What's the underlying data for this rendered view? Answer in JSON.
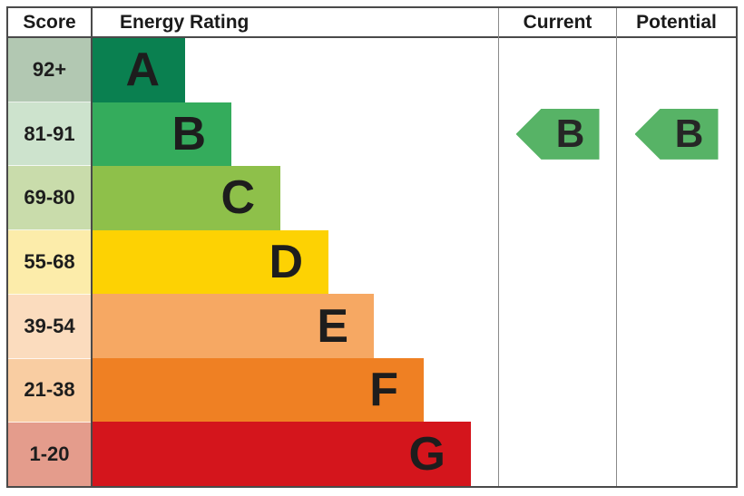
{
  "chart_data": {
    "type": "bar",
    "title": "Energy Rating",
    "columns": {
      "score": "Score",
      "rating": "Energy Rating",
      "current": "Current",
      "potential": "Potential"
    },
    "bands": [
      {
        "letter": "A",
        "score": "92+",
        "bar_color": "#0a8050",
        "score_color": "#b2c8b2",
        "bar_length": 102
      },
      {
        "letter": "B",
        "score": "81-91",
        "bar_color": "#34ac5c",
        "score_color": "#cde3cd",
        "bar_length": 153
      },
      {
        "letter": "C",
        "score": "69-80",
        "bar_color": "#8ec04a",
        "score_color": "#c9dcab",
        "bar_length": 207
      },
      {
        "letter": "D",
        "score": "55-68",
        "bar_color": "#fdd203",
        "score_color": "#fcecaa",
        "bar_length": 260
      },
      {
        "letter": "E",
        "score": "39-54",
        "bar_color": "#f6a863",
        "score_color": "#fbdcbe",
        "bar_length": 310
      },
      {
        "letter": "F",
        "score": "21-38",
        "bar_color": "#ef8023",
        "score_color": "#f9cda2",
        "bar_length": 365
      },
      {
        "letter": "G",
        "score": "1-20",
        "bar_color": "#d4151c",
        "score_color": "#e49c8c",
        "bar_length": 417
      }
    ],
    "current": {
      "letter": "B",
      "band_index": 1,
      "arrow_color": "#57b366"
    },
    "potential": {
      "letter": "B",
      "band_index": 1,
      "arrow_color": "#57b366"
    }
  }
}
